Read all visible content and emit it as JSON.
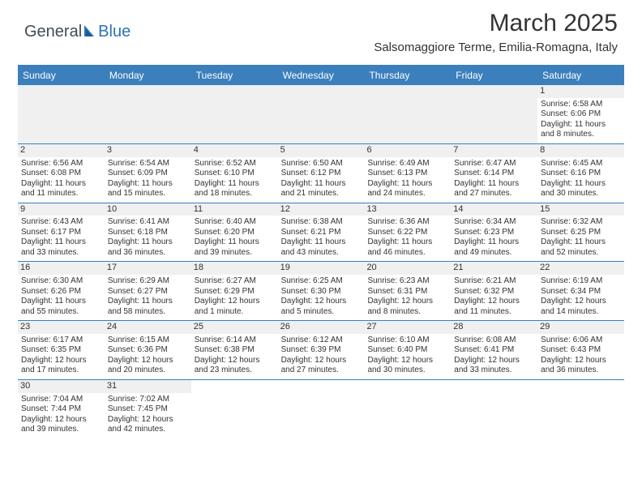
{
  "logo": {
    "left": "General",
    "right": "Blue"
  },
  "title": "March 2025",
  "subtitle": "Salsomaggiore Terme, Emilia-Romagna, Italy",
  "colors": {
    "brand_blue": "#3b7fbd",
    "header_text_blue": "#2b72b8",
    "logo_gray": "#414b56",
    "row_alt": "#f0f0f0",
    "text": "#333333",
    "bg": "#ffffff"
  },
  "dayheads": [
    "Sunday",
    "Monday",
    "Tuesday",
    "Wednesday",
    "Thursday",
    "Friday",
    "Saturday"
  ],
  "weeks": [
    [
      null,
      null,
      null,
      null,
      null,
      null,
      {
        "n": "1",
        "sr": "6:58 AM",
        "ss": "6:06 PM",
        "dl": "11 hours and 8 minutes."
      }
    ],
    [
      {
        "n": "2",
        "sr": "6:56 AM",
        "ss": "6:08 PM",
        "dl": "11 hours and 11 minutes."
      },
      {
        "n": "3",
        "sr": "6:54 AM",
        "ss": "6:09 PM",
        "dl": "11 hours and 15 minutes."
      },
      {
        "n": "4",
        "sr": "6:52 AM",
        "ss": "6:10 PM",
        "dl": "11 hours and 18 minutes."
      },
      {
        "n": "5",
        "sr": "6:50 AM",
        "ss": "6:12 PM",
        "dl": "11 hours and 21 minutes."
      },
      {
        "n": "6",
        "sr": "6:49 AM",
        "ss": "6:13 PM",
        "dl": "11 hours and 24 minutes."
      },
      {
        "n": "7",
        "sr": "6:47 AM",
        "ss": "6:14 PM",
        "dl": "11 hours and 27 minutes."
      },
      {
        "n": "8",
        "sr": "6:45 AM",
        "ss": "6:16 PM",
        "dl": "11 hours and 30 minutes."
      }
    ],
    [
      {
        "n": "9",
        "sr": "6:43 AM",
        "ss": "6:17 PM",
        "dl": "11 hours and 33 minutes."
      },
      {
        "n": "10",
        "sr": "6:41 AM",
        "ss": "6:18 PM",
        "dl": "11 hours and 36 minutes."
      },
      {
        "n": "11",
        "sr": "6:40 AM",
        "ss": "6:20 PM",
        "dl": "11 hours and 39 minutes."
      },
      {
        "n": "12",
        "sr": "6:38 AM",
        "ss": "6:21 PM",
        "dl": "11 hours and 43 minutes."
      },
      {
        "n": "13",
        "sr": "6:36 AM",
        "ss": "6:22 PM",
        "dl": "11 hours and 46 minutes."
      },
      {
        "n": "14",
        "sr": "6:34 AM",
        "ss": "6:23 PM",
        "dl": "11 hours and 49 minutes."
      },
      {
        "n": "15",
        "sr": "6:32 AM",
        "ss": "6:25 PM",
        "dl": "11 hours and 52 minutes."
      }
    ],
    [
      {
        "n": "16",
        "sr": "6:30 AM",
        "ss": "6:26 PM",
        "dl": "11 hours and 55 minutes."
      },
      {
        "n": "17",
        "sr": "6:29 AM",
        "ss": "6:27 PM",
        "dl": "11 hours and 58 minutes."
      },
      {
        "n": "18",
        "sr": "6:27 AM",
        "ss": "6:29 PM",
        "dl": "12 hours and 1 minute."
      },
      {
        "n": "19",
        "sr": "6:25 AM",
        "ss": "6:30 PM",
        "dl": "12 hours and 5 minutes."
      },
      {
        "n": "20",
        "sr": "6:23 AM",
        "ss": "6:31 PM",
        "dl": "12 hours and 8 minutes."
      },
      {
        "n": "21",
        "sr": "6:21 AM",
        "ss": "6:32 PM",
        "dl": "12 hours and 11 minutes."
      },
      {
        "n": "22",
        "sr": "6:19 AM",
        "ss": "6:34 PM",
        "dl": "12 hours and 14 minutes."
      }
    ],
    [
      {
        "n": "23",
        "sr": "6:17 AM",
        "ss": "6:35 PM",
        "dl": "12 hours and 17 minutes."
      },
      {
        "n": "24",
        "sr": "6:15 AM",
        "ss": "6:36 PM",
        "dl": "12 hours and 20 minutes."
      },
      {
        "n": "25",
        "sr": "6:14 AM",
        "ss": "6:38 PM",
        "dl": "12 hours and 23 minutes."
      },
      {
        "n": "26",
        "sr": "6:12 AM",
        "ss": "6:39 PM",
        "dl": "12 hours and 27 minutes."
      },
      {
        "n": "27",
        "sr": "6:10 AM",
        "ss": "6:40 PM",
        "dl": "12 hours and 30 minutes."
      },
      {
        "n": "28",
        "sr": "6:08 AM",
        "ss": "6:41 PM",
        "dl": "12 hours and 33 minutes."
      },
      {
        "n": "29",
        "sr": "6:06 AM",
        "ss": "6:43 PM",
        "dl": "12 hours and 36 minutes."
      }
    ],
    [
      {
        "n": "30",
        "sr": "7:04 AM",
        "ss": "7:44 PM",
        "dl": "12 hours and 39 minutes."
      },
      {
        "n": "31",
        "sr": "7:02 AM",
        "ss": "7:45 PM",
        "dl": "12 hours and 42 minutes."
      },
      null,
      null,
      null,
      null,
      null
    ]
  ],
  "labels": {
    "sunrise": "Sunrise:",
    "sunset": "Sunset:",
    "daylight": "Daylight:"
  }
}
